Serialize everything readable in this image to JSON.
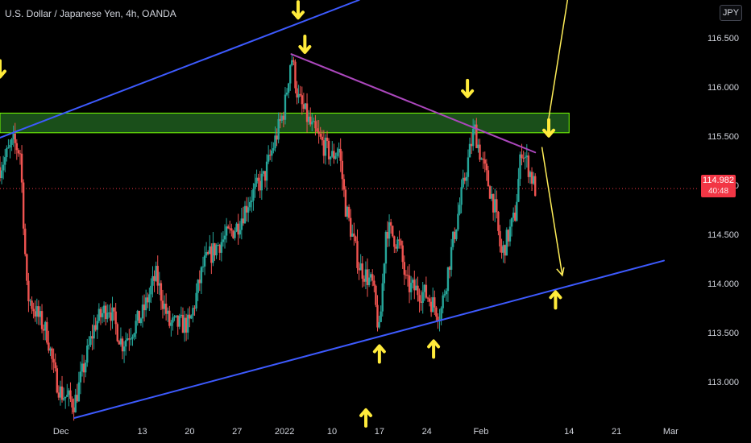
{
  "header": {
    "title": "U.S. Dollar / Japanese Yen, 4h, OANDA",
    "currency": "JPY"
  },
  "price_badge": {
    "price": "114.982",
    "countdown": "40:48"
  },
  "colors": {
    "up": "#26a69a",
    "down": "#ef5350",
    "channel": "#3d5afe",
    "trendline": "#ab47bc",
    "zone_fill": "#1f5d1e",
    "zone_border": "#76ff03",
    "arrow": "#ffeb3b",
    "projection": "#ffee58",
    "price_line": "#f23645",
    "background": "#000000"
  },
  "chart_data": {
    "type": "candlestick",
    "title": "U.S. Dollar / Japanese Yen, 4h, OANDA",
    "ylim": [
      112.6,
      116.9
    ],
    "y_ticks": [
      113.0,
      113.5,
      114.0,
      114.5,
      115.0,
      115.5,
      116.0,
      116.5
    ],
    "y_tick_labels": [
      "113.000",
      "113.500",
      "114.000",
      "114.500",
      "115.000",
      "115.500",
      "116.000",
      "116.500"
    ],
    "x_axis": {
      "start": "2021-11-22",
      "end": "2022-03-05",
      "ticks": [
        {
          "date": "2021-12-01",
          "label": "Dec"
        },
        {
          "date": "2021-12-13",
          "label": "13"
        },
        {
          "date": "2021-12-20",
          "label": "20"
        },
        {
          "date": "2021-12-27",
          "label": "27"
        },
        {
          "date": "2022-01-03",
          "label": "2022"
        },
        {
          "date": "2022-01-10",
          "label": "10"
        },
        {
          "date": "2022-01-17",
          "label": "17"
        },
        {
          "date": "2022-01-24",
          "label": "24"
        },
        {
          "date": "2022-02-01",
          "label": "Feb"
        },
        {
          "date": "2022-02-14",
          "label": "14"
        },
        {
          "date": "2022-02-21",
          "label": "21"
        },
        {
          "date": "2022-03-01",
          "label": "Mar"
        }
      ]
    },
    "price_path": [
      [
        "2021-11-22",
        115.2
      ],
      [
        "2021-11-24",
        115.45
      ],
      [
        "2021-11-25",
        115.35
      ],
      [
        "2021-11-26",
        113.9
      ],
      [
        "2021-11-29",
        113.5
      ],
      [
        "2021-11-30",
        113.1
      ],
      [
        "2021-12-01",
        112.9
      ],
      [
        "2021-12-03",
        112.8
      ],
      [
        "2021-12-06",
        113.6
      ],
      [
        "2021-12-08",
        113.8
      ],
      [
        "2021-12-10",
        113.4
      ],
      [
        "2021-12-13",
        113.7
      ],
      [
        "2021-12-15",
        114.1
      ],
      [
        "2021-12-17",
        113.6
      ],
      [
        "2021-12-20",
        113.6
      ],
      [
        "2021-12-22",
        114.2
      ],
      [
        "2021-12-24",
        114.4
      ],
      [
        "2021-12-27",
        114.6
      ],
      [
        "2021-12-29",
        114.9
      ],
      [
        "2021-12-31",
        115.1
      ],
      [
        "2022-01-03",
        115.8
      ],
      [
        "2022-01-04",
        116.35
      ],
      [
        "2022-01-05",
        115.9
      ],
      [
        "2022-01-07",
        115.6
      ],
      [
        "2022-01-10",
        115.3
      ],
      [
        "2022-01-11",
        115.4
      ],
      [
        "2022-01-12",
        114.8
      ],
      [
        "2022-01-14",
        114.2
      ],
      [
        "2022-01-16",
        114.0
      ],
      [
        "2022-01-17",
        113.5
      ],
      [
        "2022-01-18",
        114.6
      ],
      [
        "2022-01-20",
        114.4
      ],
      [
        "2022-01-21",
        114.0
      ],
      [
        "2022-01-24",
        113.9
      ],
      [
        "2022-01-26",
        113.7
      ],
      [
        "2022-01-28",
        114.5
      ],
      [
        "2022-01-31",
        115.6
      ],
      [
        "2022-02-01",
        115.3
      ],
      [
        "2022-02-03",
        114.8
      ],
      [
        "2022-02-04",
        114.3
      ],
      [
        "2022-02-06",
        114.7
      ],
      [
        "2022-02-07",
        115.4
      ],
      [
        "2022-02-08",
        115.2
      ],
      [
        "2022-02-09",
        114.98
      ]
    ],
    "candle_count": 320,
    "current_price": 114.982,
    "drawings": {
      "channel_upper": [
        [
          "2021-11-22",
          115.5
        ],
        [
          "2022-01-14",
          116.9
        ]
      ],
      "channel_lower": [
        [
          "2021-12-03",
          112.65
        ],
        [
          "2022-02-28",
          114.25
        ]
      ],
      "descending_trendline": [
        [
          "2022-01-04",
          116.35
        ],
        [
          "2022-02-09",
          115.35
        ]
      ],
      "resistance_zone": {
        "from": "2021-11-22",
        "to": "2022-02-14",
        "low": 115.55,
        "high": 115.75
      },
      "projection_up": [
        [
          "2022-02-11",
          115.7
        ],
        [
          "2022-02-14",
          117.0
        ]
      ],
      "projection_down": [
        [
          "2022-02-10",
          115.4
        ],
        [
          "2022-02-13",
          114.1
        ]
      ],
      "arrows_down": [
        [
          "2021-11-22",
          116.2
        ],
        [
          "2022-01-05",
          116.8
        ],
        [
          "2022-01-06",
          116.45
        ],
        [
          "2022-01-30",
          116.0
        ],
        [
          "2022-02-11",
          115.6
        ]
      ],
      "arrows_up": [
        [
          "2022-01-17",
          113.3
        ],
        [
          "2022-01-25",
          113.35
        ],
        [
          "2022-02-12",
          113.85
        ],
        [
          "2022-01-15",
          112.65
        ]
      ]
    }
  }
}
